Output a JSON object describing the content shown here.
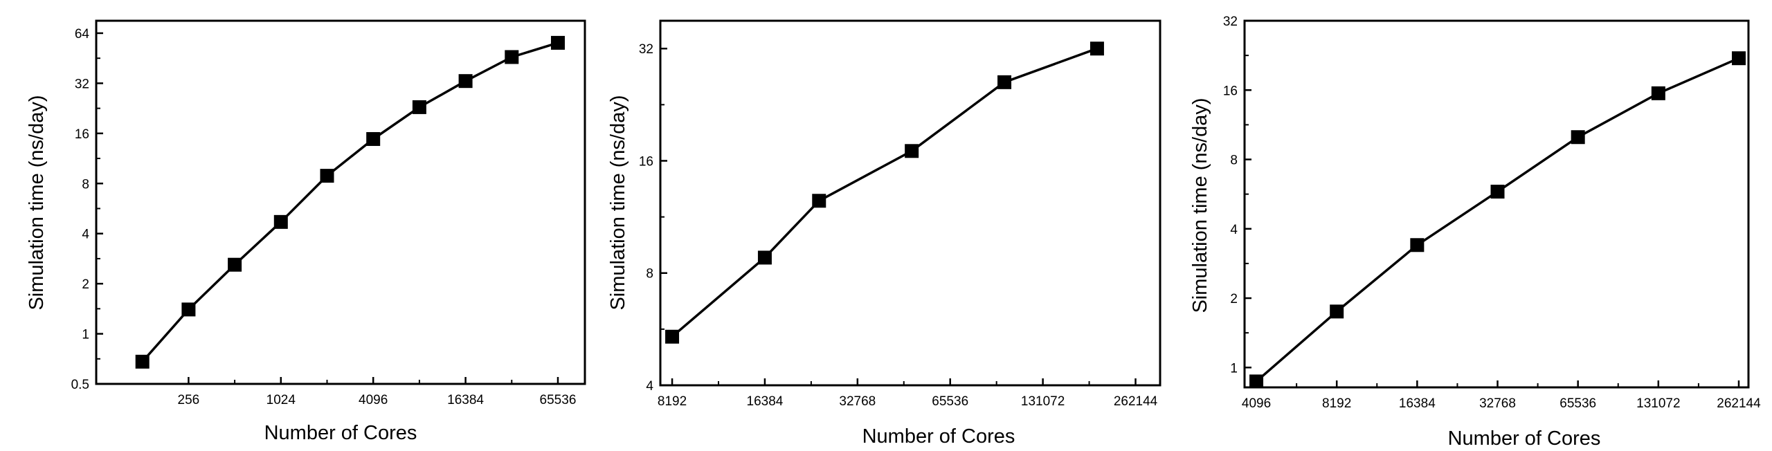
{
  "chart_data": [
    {
      "type": "line",
      "title": "",
      "xlabel": "Number of Cores",
      "ylabel": "Simulation time (ns/day)",
      "x_scale": "log2",
      "y_scale": "log2",
      "xlim": [
        64,
        98304
      ],
      "ylim": [
        0.5,
        76
      ],
      "xticks": [
        256,
        1024,
        4096,
        16384,
        65536
      ],
      "xtick_labels": [
        "256",
        "1024",
        "4096",
        "16384",
        "65536"
      ],
      "yticks": [
        0.5,
        1,
        2,
        4,
        8,
        16,
        32,
        64
      ],
      "ytick_labels": [
        "0.5",
        "1",
        "2",
        "4",
        "8",
        "16",
        "32",
        "64"
      ],
      "series": [
        {
          "marker": "square",
          "color": "#000000",
          "x": [
            128,
            256,
            512,
            1024,
            2048,
            4096,
            8192,
            16384,
            32768,
            65536
          ],
          "y": [
            0.68,
            1.4,
            2.6,
            4.7,
            8.9,
            14.8,
            23,
            33,
            46,
            56
          ]
        }
      ]
    },
    {
      "type": "line",
      "title": "",
      "xlabel": "Number of Cores",
      "ylabel": "Simulation time (ns/day)",
      "x_scale": "log2",
      "y_scale": "log2",
      "xlim": [
        7500,
        315000
      ],
      "ylim": [
        4,
        38
      ],
      "xticks": [
        8192,
        16384,
        32768,
        65536,
        131072,
        262144
      ],
      "xtick_labels": [
        "8192",
        "16384",
        "32768",
        "65536",
        "131072",
        "262144"
      ],
      "yticks": [
        4,
        8,
        16,
        32
      ],
      "ytick_labels": [
        "4",
        "8",
        "16",
        "32"
      ],
      "series": [
        {
          "marker": "square",
          "color": "#000000",
          "x": [
            8192,
            16384,
            24576,
            49152,
            98304,
            196608
          ],
          "y": [
            5.4,
            8.8,
            12.5,
            17,
            26,
            32
          ]
        }
      ]
    },
    {
      "type": "line",
      "title": "",
      "xlabel": "Number of Cores",
      "ylabel": "Simulation time (ns/day)",
      "x_scale": "log2",
      "y_scale": "log2",
      "xlim": [
        3700,
        285000
      ],
      "ylim": [
        0.82,
        32
      ],
      "xticks": [
        4096,
        8192,
        16384,
        32768,
        65536,
        131072,
        262144
      ],
      "xtick_labels": [
        "4096",
        "8192",
        "16384",
        "32768",
        "65536",
        "131072",
        "262144"
      ],
      "yticks": [
        1,
        2,
        4,
        8,
        16,
        32
      ],
      "ytick_labels": [
        "1",
        "2",
        "4",
        "8",
        "16",
        "32"
      ],
      "series": [
        {
          "marker": "square",
          "color": "#000000",
          "x": [
            4096,
            8192,
            16384,
            32768,
            65536,
            131072,
            262144
          ],
          "y": [
            0.87,
            1.75,
            3.4,
            5.8,
            10,
            15.5,
            22
          ]
        }
      ]
    }
  ]
}
